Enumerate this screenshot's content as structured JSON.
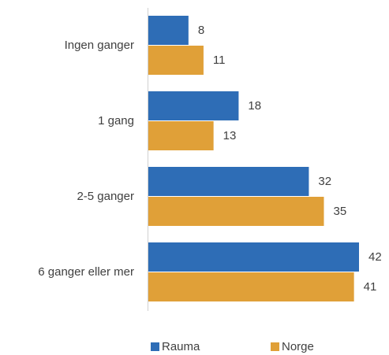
{
  "chart_data": {
    "type": "bar",
    "orientation": "horizontal",
    "categories": [
      "Ingen ganger",
      "1 gang",
      "2-5 ganger",
      "6 ganger eller mer"
    ],
    "series": [
      {
        "name": "Rauma",
        "color": "#2e6db6",
        "values": [
          8,
          18,
          32,
          42
        ]
      },
      {
        "name": "Norge",
        "color": "#e0a038",
        "values": [
          11,
          13,
          35,
          41
        ]
      }
    ],
    "legend": "bottom"
  }
}
